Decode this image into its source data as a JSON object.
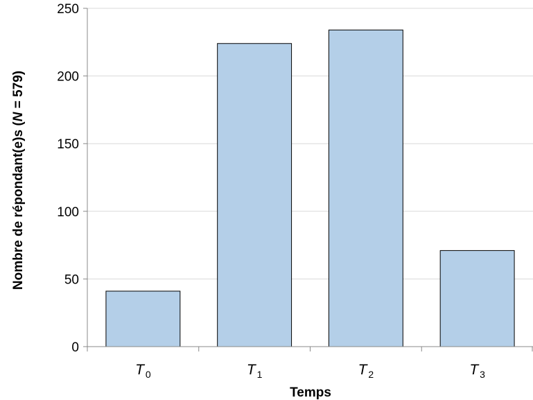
{
  "chart_data": {
    "type": "bar",
    "categories": [
      {
        "main": "T",
        "sub": "0"
      },
      {
        "main": "T",
        "sub": "1"
      },
      {
        "main": "T",
        "sub": "2"
      },
      {
        "main": "T",
        "sub": "3"
      }
    ],
    "values": [
      41,
      224,
      234,
      71
    ],
    "title": "",
    "xlabel": "Temps",
    "ylabel": {
      "prefix": "Nombre de répondant(e)s (",
      "italic": "N",
      "suffix": " = 579)"
    },
    "ylim": [
      0,
      250
    ],
    "yticks": [
      "0",
      "50",
      "100",
      "150",
      "200",
      "250"
    ],
    "grid": true,
    "legend": "none",
    "colors": {
      "bar_fill": "#b4cfe8",
      "bar_stroke": "#000000",
      "grid": "#d9d9d9",
      "axis": "#888888"
    }
  }
}
